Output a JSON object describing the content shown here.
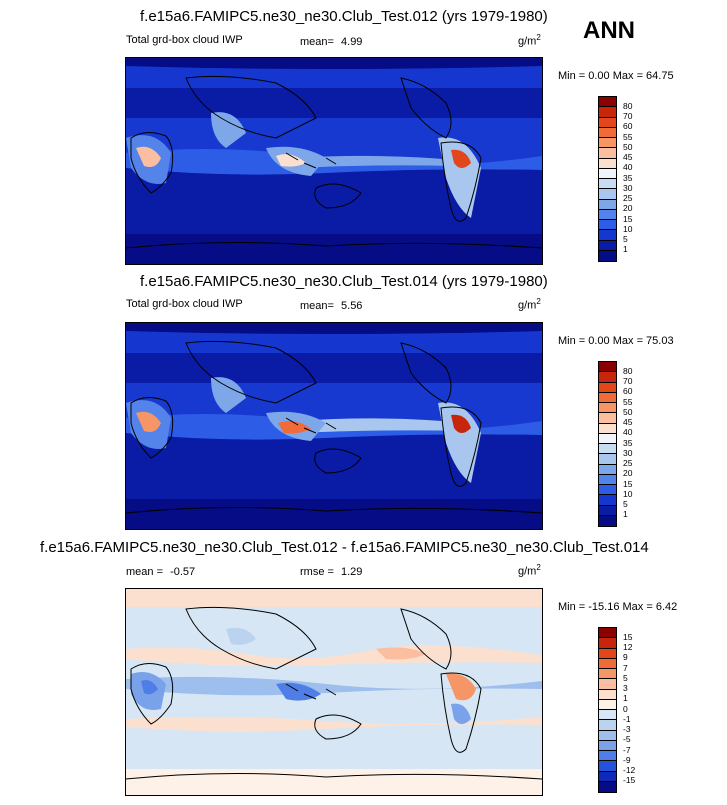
{
  "season": "ANN",
  "panels": [
    {
      "title": "f.e15a6.FAMIPC5.ne30_ne30.Club_Test.012 (yrs 1979-1980)",
      "left_label": "Total grd-box cloud IWP",
      "stat1_label": "mean=",
      "stat1_value": "4.99",
      "stat2_label": "",
      "stat2_value": "",
      "units": "g/m",
      "units_sup": "2",
      "minmax": "Min =   0.00 Max =  64.75",
      "levels": [
        "80",
        "70",
        "60",
        "55",
        "50",
        "45",
        "40",
        "35",
        "30",
        "25",
        "20",
        "15",
        "10",
        "5",
        "1"
      ],
      "colors": [
        "#8b0000",
        "#c8260c",
        "#e2461b",
        "#f06b38",
        "#f69566",
        "#fbbea0",
        "#fce0cf",
        "#f1f4f9",
        "#c9dcf2",
        "#a9c7ee",
        "#7ea7ea",
        "#5484ea",
        "#2d5ce6",
        "#1537cf",
        "#0a1ba5",
        "#050c85"
      ]
    },
    {
      "title": "f.e15a6.FAMIPC5.ne30_ne30.Club_Test.014 (yrs 1979-1980)",
      "left_label": "Total grd-box cloud IWP",
      "stat1_label": "mean=",
      "stat1_value": "5.56",
      "stat2_label": "",
      "stat2_value": "",
      "units": "g/m",
      "units_sup": "2",
      "minmax": "Min =   0.00 Max =  75.03",
      "levels": [
        "80",
        "70",
        "60",
        "55",
        "50",
        "45",
        "40",
        "35",
        "30",
        "25",
        "20",
        "15",
        "10",
        "5",
        "1"
      ],
      "colors": [
        "#8b0000",
        "#c8260c",
        "#e2461b",
        "#f06b38",
        "#f69566",
        "#fbbea0",
        "#fce0cf",
        "#f1f4f9",
        "#c9dcf2",
        "#a9c7ee",
        "#7ea7ea",
        "#5484ea",
        "#2d5ce6",
        "#1537cf",
        "#0a1ba5",
        "#050c85"
      ]
    },
    {
      "title": "f.e15a6.FAMIPC5.ne30_ne30.Club_Test.012 - f.e15a6.FAMIPC5.ne30_ne30.Club_Test.014",
      "left_label": "",
      "stat1_label": "mean =",
      "stat1_value": "-0.57",
      "stat2_label": "rmse =",
      "stat2_value": "1.29",
      "units": "g/m",
      "units_sup": "2",
      "minmax": "Min = -15.16 Max =   6.42",
      "levels": [
        "15",
        "12",
        "9",
        "7",
        "5",
        "3",
        "1",
        "0",
        "-1",
        "-3",
        "-5",
        "-7",
        "-9",
        "-12",
        "-15"
      ],
      "colors": [
        "#8b0000",
        "#c8260c",
        "#e2461b",
        "#f06b38",
        "#f69566",
        "#fbbea0",
        "#fce0cf",
        "#fdf1e8",
        "#d6e6f4",
        "#bcd3f0",
        "#9ebeee",
        "#7aa2ea",
        "#4f7fe6",
        "#2652db",
        "#0f2ab8",
        "#050c85"
      ]
    }
  ],
  "chart_data": [
    {
      "type": "heatmap",
      "title": "f.e15a6.FAMIPC5.ne30_ne30.Club_Test.012 (yrs 1979-1980)",
      "variable": "Total grd-box cloud IWP",
      "units": "g/m2",
      "mean": 4.99,
      "min": 0.0,
      "max": 64.75,
      "contour_levels": [
        1,
        5,
        10,
        15,
        20,
        25,
        30,
        35,
        40,
        45,
        50,
        55,
        60,
        70,
        80
      ]
    },
    {
      "type": "heatmap",
      "title": "f.e15a6.FAMIPC5.ne30_ne30.Club_Test.014 (yrs 1979-1980)",
      "variable": "Total grd-box cloud IWP",
      "units": "g/m2",
      "mean": 5.56,
      "min": 0.0,
      "max": 75.03,
      "contour_levels": [
        1,
        5,
        10,
        15,
        20,
        25,
        30,
        35,
        40,
        45,
        50,
        55,
        60,
        70,
        80
      ]
    },
    {
      "type": "heatmap",
      "title": "f.e15a6.FAMIPC5.ne30_ne30.Club_Test.012 - f.e15a6.FAMIPC5.ne30_ne30.Club_Test.014",
      "units": "g/m2",
      "mean": -0.57,
      "rmse": 1.29,
      "min": -15.16,
      "max": 6.42,
      "contour_levels": [
        -15,
        -12,
        -9,
        -7,
        -5,
        -3,
        -1,
        0,
        1,
        3,
        5,
        7,
        9,
        12,
        15
      ]
    }
  ]
}
